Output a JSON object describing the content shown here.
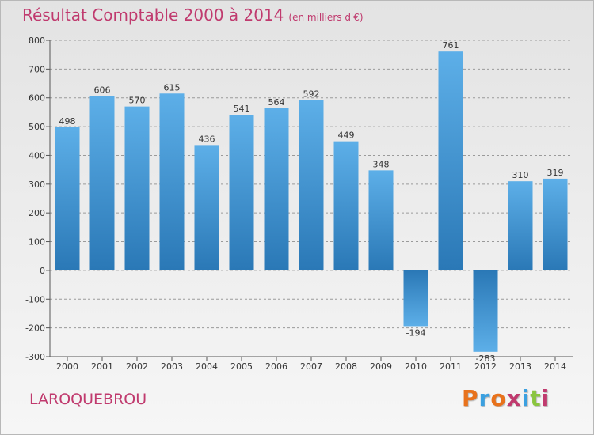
{
  "title": "Résultat Comptable 2000 à 2014",
  "subtitle": "(en milliers d'€)",
  "commune": "LAROQUEBROU",
  "logo": {
    "text": "Proxiti",
    "colors": [
      "#e8721c",
      "#3ba0e0",
      "#e8721c",
      "#c03a6e",
      "#3ba0e0",
      "#8ac53f",
      "#c03a6e"
    ]
  },
  "colors": {
    "title": "#c03a6e",
    "bar_light": "#5dafe8",
    "bar_dark": "#2a78b6"
  },
  "chart_data": {
    "type": "bar",
    "categories": [
      "2000",
      "2001",
      "2002",
      "2003",
      "2004",
      "2005",
      "2006",
      "2007",
      "2008",
      "2009",
      "2010",
      "2011",
      "2012",
      "2013",
      "2014"
    ],
    "values": [
      498,
      606,
      570,
      615,
      436,
      541,
      564,
      592,
      449,
      348,
      -194,
      761,
      -283,
      310,
      319
    ],
    "value_labels": [
      "498",
      "606",
      "570",
      "615",
      "436",
      "541",
      "564",
      "592",
      "449",
      "348",
      "-194",
      "761",
      "-283",
      "310",
      "319"
    ],
    "ylim": [
      -300,
      800
    ],
    "yticks": [
      -300,
      -200,
      -100,
      0,
      100,
      200,
      300,
      400,
      500,
      600,
      700,
      800
    ],
    "ytick_labels": [
      "-300",
      "-200",
      "-100",
      "0",
      "100",
      "200",
      "300",
      "400",
      "500",
      "600",
      "700",
      "800"
    ],
    "grid": "horizontal dashed"
  }
}
